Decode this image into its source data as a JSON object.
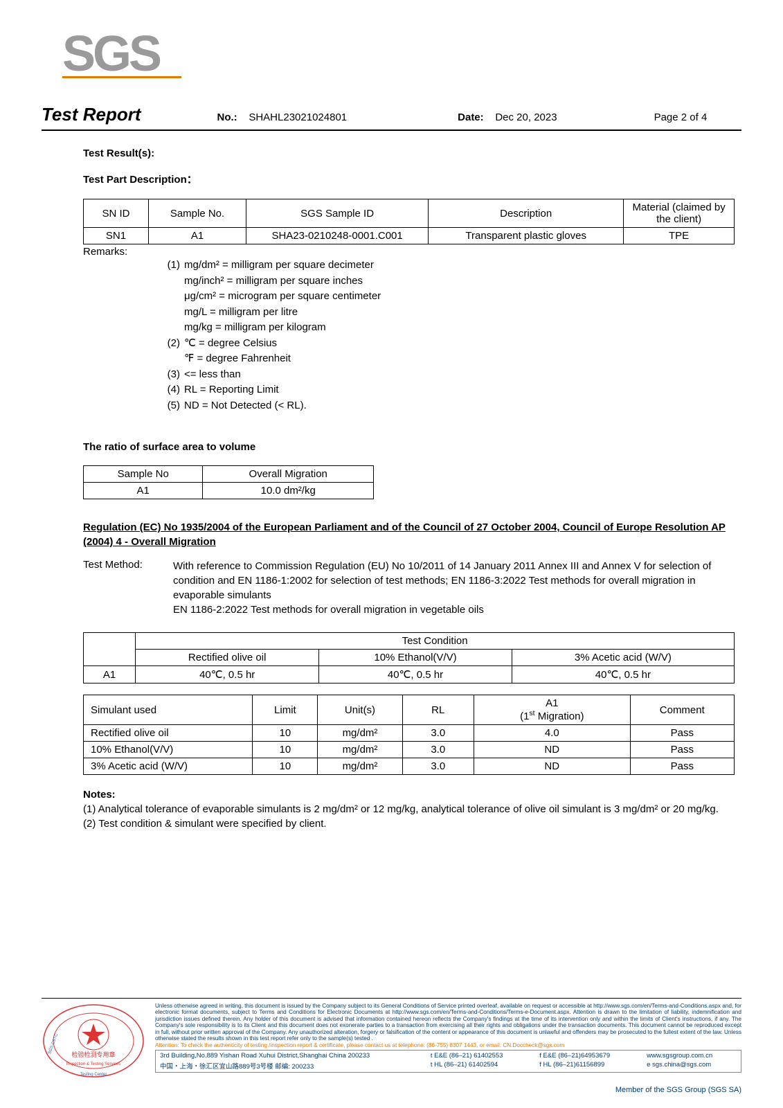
{
  "logo": {
    "text": "SGS",
    "color": "#9a9a9a"
  },
  "header": {
    "title": "Test Report",
    "no_label": "No.:",
    "no_value": "SHAHL23021024801",
    "date_label": "Date:",
    "date_value": "Dec 20, 2023",
    "page": "Page 2 of 4"
  },
  "sections": {
    "result_heading": "Test Result(s):",
    "part_heading": "Test Part Description：",
    "ratio_heading": "The ratio of surface area to volume",
    "reg_heading": "Regulation (EC) No 1935/2004 of the European Parliament and of the Council of 27 October 2004, Council of Europe Resolution AP (2004) 4 - Overall Migration",
    "notes_heading": "Notes:"
  },
  "part_table": {
    "columns": [
      "SN ID",
      "Sample No.",
      "SGS Sample ID",
      "Description",
      "Material (claimed by the client)"
    ],
    "col_widths": [
      "10%",
      "15%",
      "28%",
      "30%",
      "17%"
    ],
    "rows": [
      [
        "SN1",
        "A1",
        "SHA23-0210248-0001.C001",
        "Transparent plastic gloves",
        "TPE"
      ]
    ]
  },
  "remarks": {
    "label": "Remarks:",
    "items": [
      {
        "num": "(1)",
        "lines": [
          "mg/dm² = milligram per square decimeter",
          "mg/inch² = milligram per square inches",
          "μg/cm² = microgram per square centimeter",
          "mg/L = milligram per litre",
          "mg/kg = milligram per kilogram"
        ]
      },
      {
        "num": "(2)",
        "lines": [
          "℃ = degree Celsius",
          " ",
          "℉  = degree Fahrenheit"
        ]
      },
      {
        "num": "(3)",
        "lines": [
          "<= less than"
        ]
      },
      {
        "num": "(4)",
        "lines": [
          "RL = Reporting Limit"
        ]
      },
      {
        "num": "(5)",
        "lines": [
          "ND = Not Detected (< RL)."
        ]
      }
    ]
  },
  "ratio_table": {
    "columns": [
      "Sample No",
      "Overall Migration"
    ],
    "rows": [
      [
        "A1",
        "10.0 dm²/kg"
      ]
    ]
  },
  "test_method": {
    "label": "Test Method:",
    "text": "With reference to Commission Regulation (EU) No 10/2011 of 14 January 2011 Annex III and Annex V for selection of condition and EN 1186-1:2002 for selection of test methods; EN 1186-3:2022 Test methods for overall migration in evaporable simulants\nEN 1186-2:2022 Test methods for overall migration in vegetable oils"
  },
  "condition_table": {
    "header_span": "Test Condition",
    "columns": [
      "Rectified olive oil",
      "10% Ethanol(V/V)",
      "3% Acetic acid (W/V)"
    ],
    "row_label": "A1",
    "row": [
      "40℃, 0.5 hr",
      "40℃, 0.5 hr",
      "40℃, 0.5 hr"
    ]
  },
  "result_table": {
    "columns": [
      "Simulant used",
      "Limit",
      "Unit(s)",
      "RL",
      "A1\n(1st Migration)",
      "Comment"
    ],
    "col_widths": [
      "26%",
      "10%",
      "13%",
      "11%",
      "24%",
      "16%"
    ],
    "rows": [
      [
        "Rectified olive oil",
        "10",
        "mg/dm²",
        "3.0",
        "4.0",
        "Pass"
      ],
      [
        "10% Ethanol(V/V)",
        "10",
        "mg/dm²",
        "3.0",
        "ND",
        "Pass"
      ],
      [
        "3% Acetic acid (W/V)",
        "10",
        "mg/dm²",
        "3.0",
        "ND",
        "Pass"
      ]
    ]
  },
  "notes": [
    "(1) Analytical tolerance of evaporable simulants is 2 mg/dm² or 12 mg/kg, analytical tolerance of olive oil simulant is 3 mg/dm² or 20 mg/kg.",
    "(2) Test condition & simulant were specified by client."
  ],
  "footer": {
    "disclaimer": "Unless otherwise agreed in writing, this document is issued by the Company subject to its General Conditions of Service printed overleaf, available on request or accessible at http://www.sgs.com/en/Terms-and-Conditions.aspx and, for electronic format documents, subject to Terms and Conditions for Electronic Documents at http://www.sgs.com/en/Terms-and-Conditions/Terms-e-Document.aspx. Attention is drawn to the limitation of liability, indemnification and jurisdiction issues defined therein. Any holder of this document is advised that information contained hereon reflects the Company's findings at the time of its intervention only and within the limits of Client's instructions, if any. The Company's sole responsibility is to its Client and this document does not exonerate parties to a transaction from exercising all their rights and obligations under the transaction documents. This document cannot be reproduced except in full, without prior written approval of the Company. Any unauthorized alteration, forgery or falsification of the content or appearance of this document is unlawful and offenders may be prosecuted to the fullest extent of the law. Unless otherwise stated the results shown in this test report refer only to the sample(s) tested .",
    "warn": "Attention: To check the authenticity of testing /inspection report & certificate, please contact us at telephone: (86-755) 8307 1443, or email: CN.Doccheck@sgs.com",
    "addr_en": "3rd Building,No.889 Yishan Road Xuhui District,Shanghai China    200233",
    "addr_cn": "中国・上海・徐汇区宜山路889号3号楼    邮编: 200233",
    "tel1": "t E&E (86–21) 61402553",
    "fax1": "f E&E (86–21)64953679",
    "tel2": "t HL (86–21) 61402594",
    "fax2": "f HL (86–21)61156899",
    "web": "www.sgsgroup.com.cn",
    "email": "e  sgs.china@sgs.com",
    "member": "Member of the SGS Group (SGS SA)",
    "stamp_lines": [
      "检验检测专用章",
      "Inspection & Testing Services",
      "SGS-CSTC",
      "Testing Center"
    ]
  }
}
